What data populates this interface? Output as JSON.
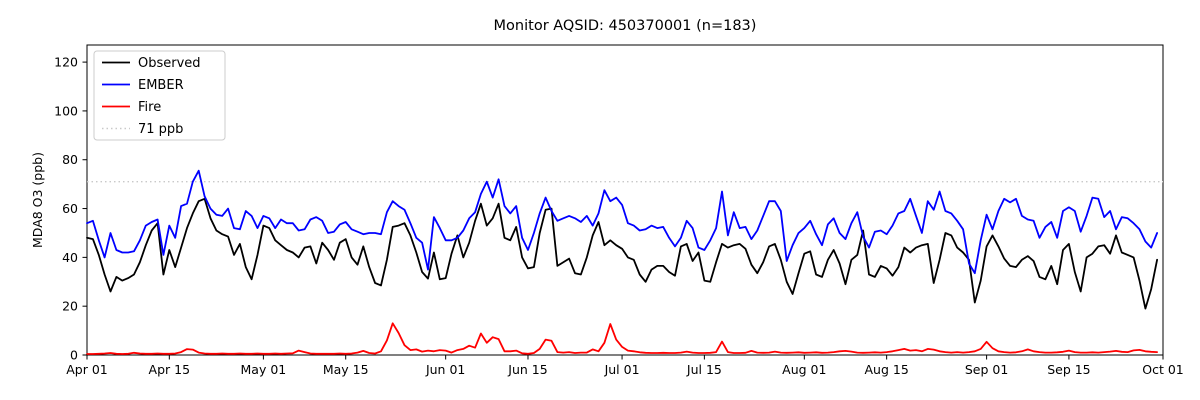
{
  "chart_data": {
    "type": "line",
    "title": "Monitor AQSID: 450370001 (n=183)",
    "xlabel": "",
    "ylabel": "MDA8 O3 (ppb)",
    "n_points": 183,
    "x_range_days": 183,
    "ylim": [
      0,
      127
    ],
    "yticks": [
      0,
      20,
      40,
      60,
      80,
      100,
      120
    ],
    "xtick_labels": [
      "Apr 01",
      "Apr 15",
      "May 01",
      "May 15",
      "Jun 01",
      "Jun 15",
      "Jul 01",
      "Jul 15",
      "Aug 01",
      "Aug 15",
      "Sep 01",
      "Sep 15",
      "Oct 01"
    ],
    "xtick_days": [
      0,
      14,
      30,
      44,
      61,
      75,
      91,
      105,
      122,
      136,
      153,
      167,
      183
    ],
    "grid": false,
    "legend_position": "upper-left",
    "frame_color": "#000000",
    "background_color": "#ffffff",
    "threshold": {
      "label": "71 ppb",
      "value": 71,
      "color": "#c9c9c9",
      "style": "dotted"
    },
    "series": [
      {
        "name": "Observed",
        "color": "#000000",
        "values": [
          48,
          47.5,
          41,
          33,
          26,
          32,
          30.5,
          31.5,
          33,
          38,
          45,
          51,
          54,
          33,
          43,
          36,
          44,
          52,
          58,
          63,
          64,
          56,
          51,
          49.5,
          48.5,
          41,
          45.5,
          36,
          31,
          41,
          53,
          52,
          47,
          45,
          43,
          42,
          40,
          44,
          44.5,
          37.5,
          46,
          43,
          39,
          46,
          47.5,
          40,
          37,
          44.5,
          36,
          29.5,
          28.5,
          39,
          52.5,
          53,
          54,
          49,
          42,
          34,
          31.3,
          42,
          31,
          31.5,
          41.5,
          49,
          40,
          46,
          55,
          62,
          53,
          56,
          62,
          48,
          47,
          52.5,
          40,
          35.5,
          36,
          50,
          59.5,
          60,
          36.5,
          38,
          39.5,
          33.5,
          33,
          40,
          49,
          54.5,
          45,
          47,
          45,
          43.5,
          40,
          39,
          33,
          30,
          35,
          36.5,
          36.5,
          34,
          32.5,
          44.5,
          45.5,
          38.5,
          42,
          30.5,
          30,
          38,
          45.5,
          44,
          45,
          45.5,
          43.5,
          37,
          33.5,
          38,
          44.5,
          45.5,
          39,
          30,
          25,
          33.5,
          41.5,
          42.5,
          33,
          32,
          39,
          43,
          37.5,
          29,
          39,
          41,
          51,
          33,
          32,
          36.5,
          35.5,
          32.5,
          36,
          44,
          42,
          44,
          45,
          45.5,
          29.5,
          39,
          50,
          49,
          44,
          42,
          39,
          21.5,
          30.5,
          44.5,
          49,
          44.5,
          39.5,
          36.5,
          36,
          39,
          40.5,
          38.5,
          32,
          31,
          36.5,
          29,
          43,
          45.5,
          34,
          26,
          40,
          41.5,
          44.5,
          45,
          41.5,
          49,
          42,
          41,
          40,
          30.5,
          19,
          27,
          39
        ]
      },
      {
        "name": "EMBER",
        "color": "#0000ff",
        "values": [
          54,
          55,
          47,
          40,
          50,
          43,
          42,
          42,
          42.5,
          47,
          53,
          54.5,
          55.5,
          41,
          53,
          48,
          61,
          62,
          71,
          75.5,
          65,
          60,
          57.5,
          57,
          60,
          52,
          51.5,
          59,
          57,
          52,
          57,
          56,
          52,
          55.5,
          54,
          54,
          51,
          51.5,
          55.5,
          56.5,
          55,
          50,
          50.5,
          53.5,
          54.5,
          51.5,
          50.5,
          49.5,
          50,
          50,
          49.5,
          58.5,
          63,
          61,
          59.5,
          54,
          48,
          46,
          35,
          56.5,
          52,
          47,
          47,
          48,
          51,
          56,
          58.5,
          66,
          71,
          64.5,
          72,
          61,
          58,
          61,
          48,
          43,
          50,
          58,
          64.5,
          59,
          55,
          56,
          57,
          56,
          54.5,
          57,
          53,
          58,
          67.5,
          63,
          64.5,
          61.5,
          54,
          53,
          51,
          51.5,
          53,
          52,
          52.5,
          48,
          44.5,
          48,
          55,
          52,
          44,
          43,
          47,
          52,
          67,
          49,
          58.5,
          52,
          52.5,
          47.5,
          51,
          57,
          63,
          63,
          59,
          38.5,
          45,
          50,
          52,
          55,
          49.5,
          45,
          53.5,
          56,
          50,
          47.5,
          54,
          58.5,
          48.5,
          44,
          50.5,
          51,
          49.5,
          53,
          58,
          59,
          64,
          57,
          50,
          63,
          59.5,
          67,
          59,
          58,
          55,
          51.5,
          37.5,
          33.5,
          47,
          57.5,
          51.5,
          59,
          64,
          62.5,
          64,
          57,
          55.5,
          55,
          48,
          52.5,
          54.5,
          48,
          59,
          60.5,
          59,
          50.5,
          57,
          64.5,
          64,
          56.5,
          59,
          51.5,
          56.5,
          56,
          54,
          51.5,
          46.5,
          44,
          50
        ]
      },
      {
        "name": "Fire",
        "color": "#ff0000",
        "values": [
          0.4,
          0.4,
          0.5,
          0.6,
          0.8,
          0.5,
          0.4,
          0.5,
          0.9,
          0.6,
          0.5,
          0.5,
          0.6,
          0.5,
          0.5,
          0.6,
          1.2,
          2.4,
          2.2,
          1.0,
          0.6,
          0.5,
          0.5,
          0.6,
          0.5,
          0.5,
          0.6,
          0.5,
          0.5,
          0.6,
          0.5,
          0.5,
          0.6,
          0.5,
          0.6,
          0.7,
          1.8,
          1.2,
          0.6,
          0.5,
          0.5,
          0.5,
          0.5,
          0.6,
          0.5,
          0.6,
          1.0,
          1.7,
          0.8,
          0.6,
          1.5,
          6.0,
          13.0,
          9.0,
          4.0,
          2.0,
          2.3,
          1.4,
          1.8,
          1.5,
          2.0,
          1.8,
          1.0,
          2.0,
          2.5,
          3.8,
          3.0,
          8.8,
          5.0,
          7.3,
          6.5,
          1.5,
          1.5,
          1.8,
          0.7,
          0.5,
          0.8,
          2.5,
          6.3,
          5.8,
          1.2,
          1.0,
          1.2,
          0.8,
          1.0,
          1.0,
          2.3,
          1.5,
          5.0,
          12.7,
          6.3,
          3.3,
          1.8,
          1.5,
          1.1,
          0.9,
          0.8,
          0.8,
          0.9,
          0.8,
          0.8,
          1.0,
          1.4,
          1.0,
          0.8,
          0.8,
          0.9,
          1.2,
          5.5,
          1.2,
          0.8,
          0.8,
          0.9,
          1.7,
          1.0,
          0.9,
          1.0,
          1.4,
          1.0,
          0.9,
          1.0,
          1.1,
          0.9,
          1.0,
          1.1,
          0.9,
          1.0,
          1.2,
          1.5,
          1.7,
          1.4,
          1.0,
          0.9,
          1.0,
          1.1,
          1.0,
          1.2,
          1.5,
          2.0,
          2.5,
          1.8,
          2.0,
          1.5,
          2.5,
          2.2,
          1.5,
          1.2,
          1.0,
          1.2,
          1.0,
          1.2,
          1.5,
          2.5,
          5.4,
          2.8,
          1.5,
          1.2,
          1.0,
          1.1,
          1.5,
          2.3,
          1.5,
          1.2,
          1.0,
          1.0,
          1.1,
          1.3,
          1.8,
          1.2,
          1.0,
          1.0,
          1.1,
          1.0,
          1.2,
          1.4,
          1.7,
          1.3,
          1.2,
          1.9,
          2.1,
          1.5,
          1.3,
          1.2
        ]
      }
    ]
  }
}
